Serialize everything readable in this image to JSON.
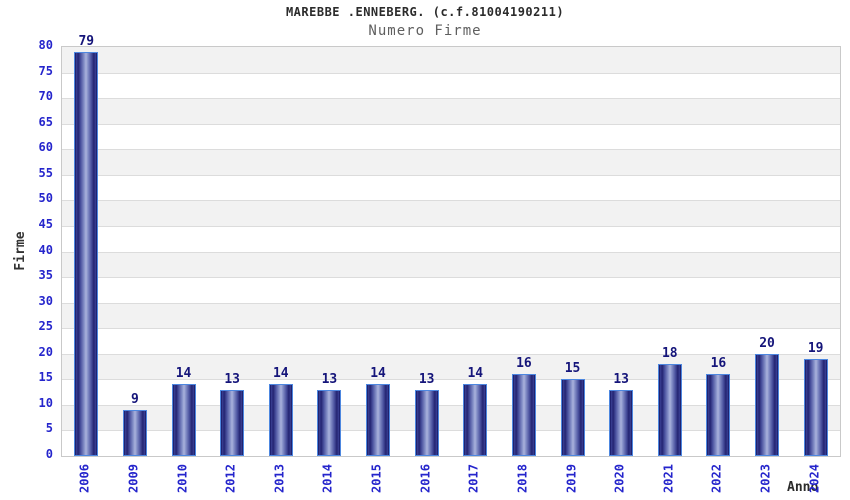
{
  "chart_data": {
    "type": "bar",
    "title": "MAREBBE .ENNEBERG. (c.f.81004190211)",
    "subtitle": "Numero Firme",
    "xlabel": "Anno",
    "ylabel": "Firme",
    "categories": [
      "2006",
      "2009",
      "2010",
      "2012",
      "2013",
      "2014",
      "2015",
      "2016",
      "2017",
      "2018",
      "2019",
      "2020",
      "2021",
      "2022",
      "2023",
      "2024"
    ],
    "values": [
      79,
      9,
      14,
      13,
      14,
      13,
      14,
      13,
      14,
      16,
      15,
      13,
      18,
      16,
      20,
      19
    ],
    "ylim": [
      0,
      80
    ],
    "ytick_step": 5,
    "yticks": [
      0,
      5,
      10,
      15,
      20,
      25,
      30,
      35,
      40,
      45,
      50,
      55,
      60,
      65,
      70,
      75,
      80
    ],
    "grid": "horizontal-bands",
    "legend_position": "none",
    "colors": {
      "bar_dark": "#13145e",
      "bar_light": "#aab2dc",
      "bar_border": "#4d87e0",
      "axis_tick_text": "#2525cc",
      "value_label_text": "#15157a",
      "band_gray": "#f2f2f2",
      "band_white": "#ffffff",
      "gridline": "#dcdcdc",
      "plot_border": "#c9c9c9",
      "title_text": "#2b2b2b",
      "subtitle_text": "#5f5f5f"
    }
  }
}
